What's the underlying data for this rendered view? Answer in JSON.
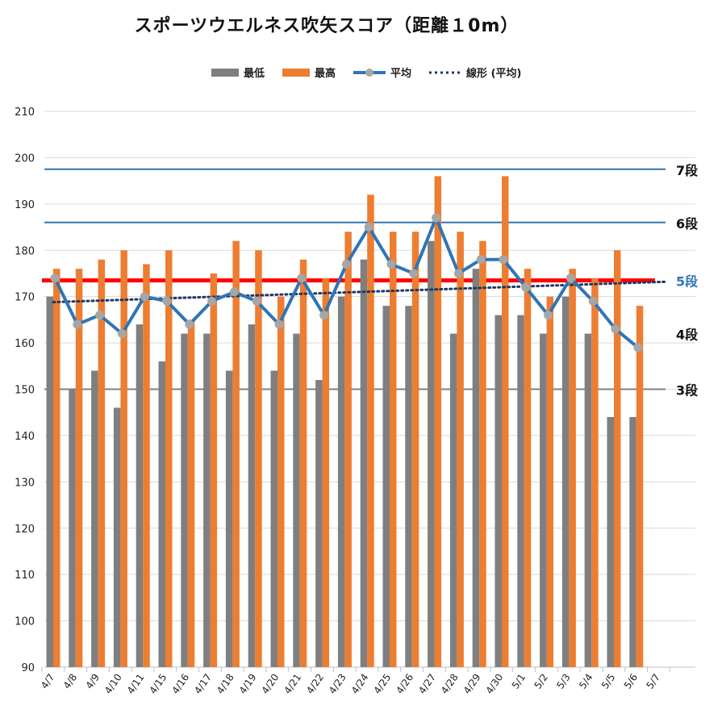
{
  "title": "スポーツウエルネス吹矢スコア（距離１0m）",
  "legend": {
    "items": [
      {
        "label": "最低",
        "color": "#7f7f7f",
        "kind": "box"
      },
      {
        "label": "最高",
        "color": "#ed7d31",
        "kind": "box"
      },
      {
        "label": "平均",
        "color": "#2e75b6",
        "kind": "line-marker"
      },
      {
        "label": "線形 (平均)",
        "color": "#1f3864",
        "kind": "dotted"
      }
    ]
  },
  "chart_data": {
    "type": "bar",
    "title": "スポーツウエルネス吹矢スコア（距離１0m）",
    "categories": [
      "4/7",
      "4/8",
      "4/9",
      "4/10",
      "4/11",
      "4/15",
      "4/16",
      "4/17",
      "4/18",
      "4/19",
      "4/20",
      "4/21",
      "4/22",
      "4/23",
      "4/24",
      "4/25",
      "4/26",
      "4/27",
      "4/28",
      "4/29",
      "4/30",
      "5/1",
      "5/2",
      "5/3",
      "5/4",
      "5/5",
      "5/6",
      "5/7"
    ],
    "ylim": [
      90,
      210
    ],
    "yticks": [
      90,
      100,
      110,
      120,
      130,
      140,
      150,
      160,
      170,
      180,
      190,
      200,
      210
    ],
    "grid": true,
    "legend_position": "top",
    "series": [
      {
        "name": "最低",
        "type": "bar",
        "color": "#7f7f7f",
        "values": [
          170,
          150,
          154,
          146,
          164,
          156,
          162,
          162,
          154,
          164,
          154,
          162,
          152,
          170,
          178,
          168,
          168,
          182,
          162,
          176,
          166,
          166,
          162,
          170,
          162,
          144,
          144,
          null
        ]
      },
      {
        "name": "最高",
        "type": "bar",
        "color": "#ed7d31",
        "values": [
          176,
          176,
          178,
          180,
          177,
          180,
          165,
          175,
          182,
          180,
          170,
          178,
          174,
          184,
          192,
          184,
          184,
          196,
          184,
          182,
          196,
          176,
          170,
          176,
          174,
          180,
          168,
          null
        ]
      },
      {
        "name": "平均",
        "type": "line",
        "color": "#2e75b6",
        "marker_color": "#a6a6a6",
        "values": [
          174,
          164,
          166,
          162,
          170,
          169,
          164,
          169,
          171,
          169,
          164,
          174,
          166,
          177,
          185,
          177,
          175,
          187,
          175,
          178,
          178,
          172,
          166,
          174,
          169,
          163,
          159,
          null
        ]
      },
      {
        "name": "線形 (平均)",
        "type": "trendline",
        "color": "#1f3864",
        "start": 168.8,
        "end": 173.2
      }
    ],
    "reference_lines": [
      {
        "label": "7段",
        "value": 197.5,
        "color": "#2e75b6",
        "label_color": "#111111"
      },
      {
        "label": "6段",
        "value": 186,
        "color": "#2e75b6",
        "label_color": "#111111"
      },
      {
        "label": "5段",
        "value": 173.5,
        "color": "#ff0000",
        "label_color": "#2e75b6"
      },
      {
        "label": "4段",
        "value": 162,
        "color": null,
        "label_color": "#111111"
      },
      {
        "label": "3段",
        "value": 150,
        "color": "#7f7f7f",
        "label_color": "#111111"
      }
    ]
  }
}
